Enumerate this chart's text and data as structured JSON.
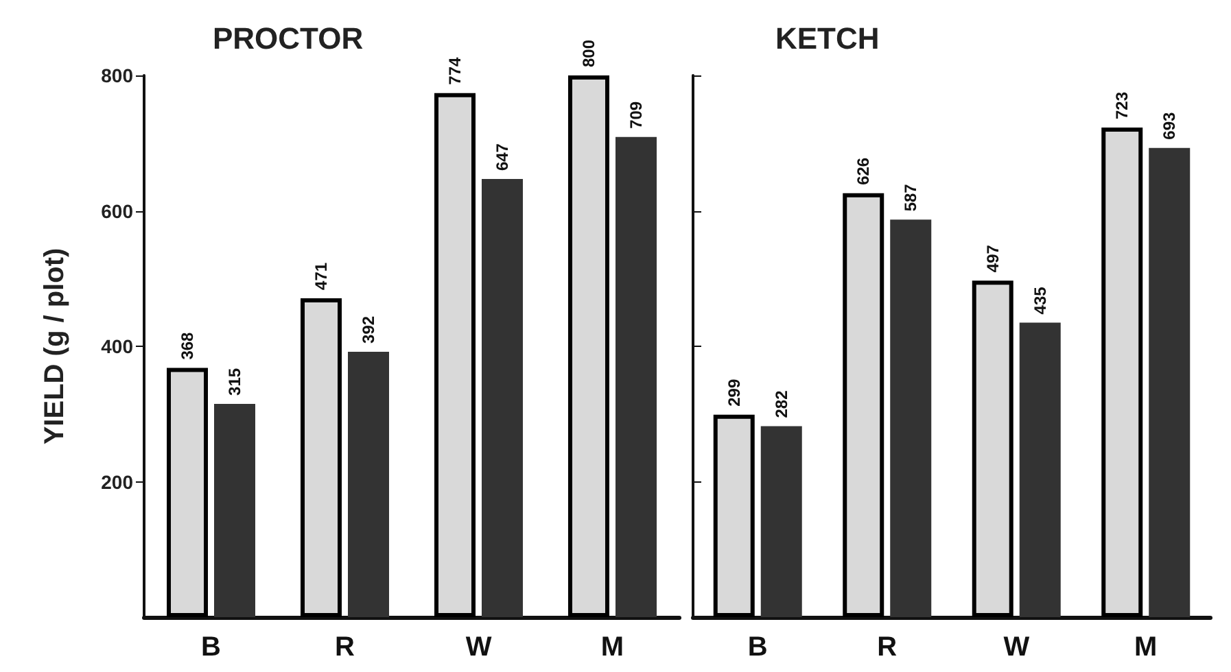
{
  "chart_data": [
    {
      "type": "bar",
      "title": "PROCTOR",
      "ylabel": "YIELD (g / plot)",
      "categories": [
        "B",
        "R",
        "W",
        "M"
      ],
      "series": [
        {
          "color": "#d9d9d9",
          "values": [
            368,
            471,
            774,
            800
          ]
        },
        {
          "color": "#333333",
          "values": [
            315,
            392,
            647,
            709
          ]
        }
      ],
      "ylim": [
        0,
        800
      ],
      "yticks": [
        200,
        400,
        600,
        800
      ],
      "data_labels": true
    },
    {
      "type": "bar",
      "title": "KETCH",
      "categories": [
        "B",
        "R",
        "W",
        "M"
      ],
      "series": [
        {
          "color": "#d9d9d9",
          "values": [
            299,
            626,
            497,
            723
          ]
        },
        {
          "color": "#333333",
          "values": [
            282,
            587,
            435,
            693
          ]
        }
      ],
      "ylim": [
        0,
        800
      ],
      "yticks": [
        200,
        400,
        600,
        800
      ],
      "data_labels": true,
      "tick_labels": "x"
    }
  ]
}
